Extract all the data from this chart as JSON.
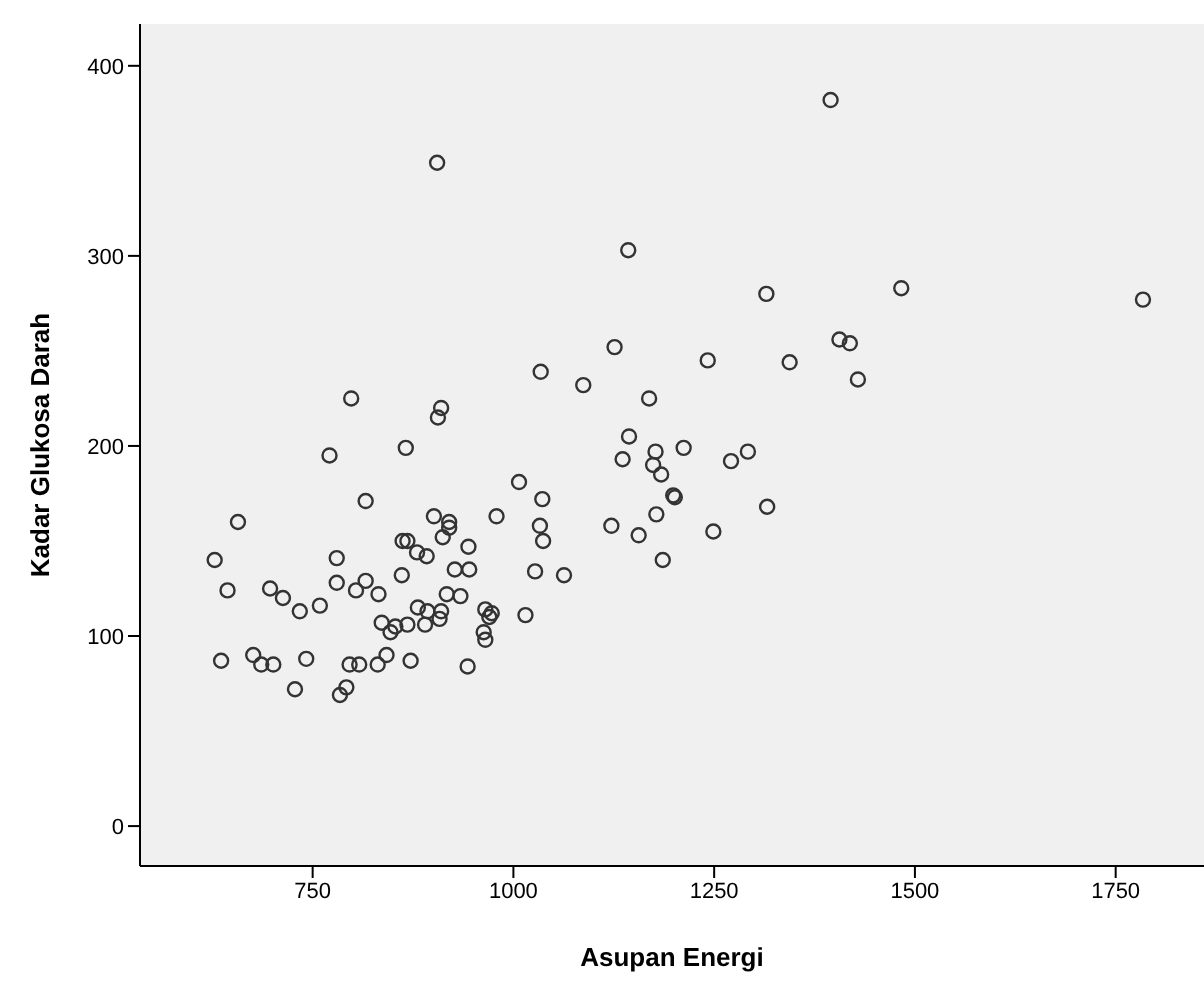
{
  "chart_data": {
    "type": "scatter",
    "xlabel": "Asupan Energi",
    "ylabel": "Kadar Glukosa Darah",
    "xlim": [
      535,
      1860
    ],
    "ylim": [
      -21,
      422
    ],
    "xticks": [
      750,
      1000,
      1250,
      1500,
      1750
    ],
    "yticks": [
      0,
      100,
      200,
      300,
      400
    ],
    "grid": false,
    "legend": false,
    "marker": "circle",
    "series": [
      {
        "color": "#333333",
        "x": [
          798,
          910,
          906,
          771,
          866,
          816,
          1007,
          657,
          901,
          920,
          920,
          912,
          979,
          862,
          868,
          880,
          892,
          944,
          628,
          780,
          927,
          945,
          861,
          644,
          697,
          713,
          780,
          816,
          804,
          832,
          917,
          934,
          734,
          759,
          836,
          853,
          847,
          868,
          881,
          893,
          910,
          908,
          890,
          965,
          970,
          973,
          963,
          965,
          1015,
          636,
          676,
          686,
          701,
          742,
          796,
          808,
          831,
          842,
          872,
          943,
          728,
          792,
          784,
          905,
          1143,
          1315,
          1126,
          1242,
          1344,
          1034,
          1087,
          1169,
          1144,
          1136,
          1177,
          1174,
          1184,
          1212,
          1271,
          1292,
          1199,
          1201,
          1036,
          1122,
          1156,
          1178,
          1249,
          1316,
          1033,
          1037,
          1027,
          1063,
          1186,
          1395,
          1483,
          1784,
          1406,
          1419,
          1429
        ],
        "values": [
          225,
          220,
          215,
          195,
          199,
          171,
          181,
          160,
          163,
          160,
          157,
          152,
          163,
          150,
          150,
          144,
          142,
          147,
          140,
          141,
          135,
          135,
          132,
          124,
          125,
          120,
          128,
          129,
          124,
          122,
          122,
          121,
          113,
          116,
          107,
          105,
          102,
          106,
          115,
          113,
          113,
          109,
          106,
          114,
          110,
          112,
          102,
          98,
          111,
          87,
          90,
          85,
          85,
          88,
          85,
          85,
          85,
          90,
          87,
          84,
          72,
          73,
          69,
          349,
          303,
          280,
          252,
          245,
          244,
          239,
          232,
          225,
          205,
          193,
          197,
          190,
          185,
          199,
          192,
          197,
          174,
          173,
          172,
          158,
          153,
          164,
          155,
          168,
          158,
          150,
          134,
          132,
          140,
          382,
          283,
          277,
          256,
          254,
          235
        ]
      }
    ]
  }
}
